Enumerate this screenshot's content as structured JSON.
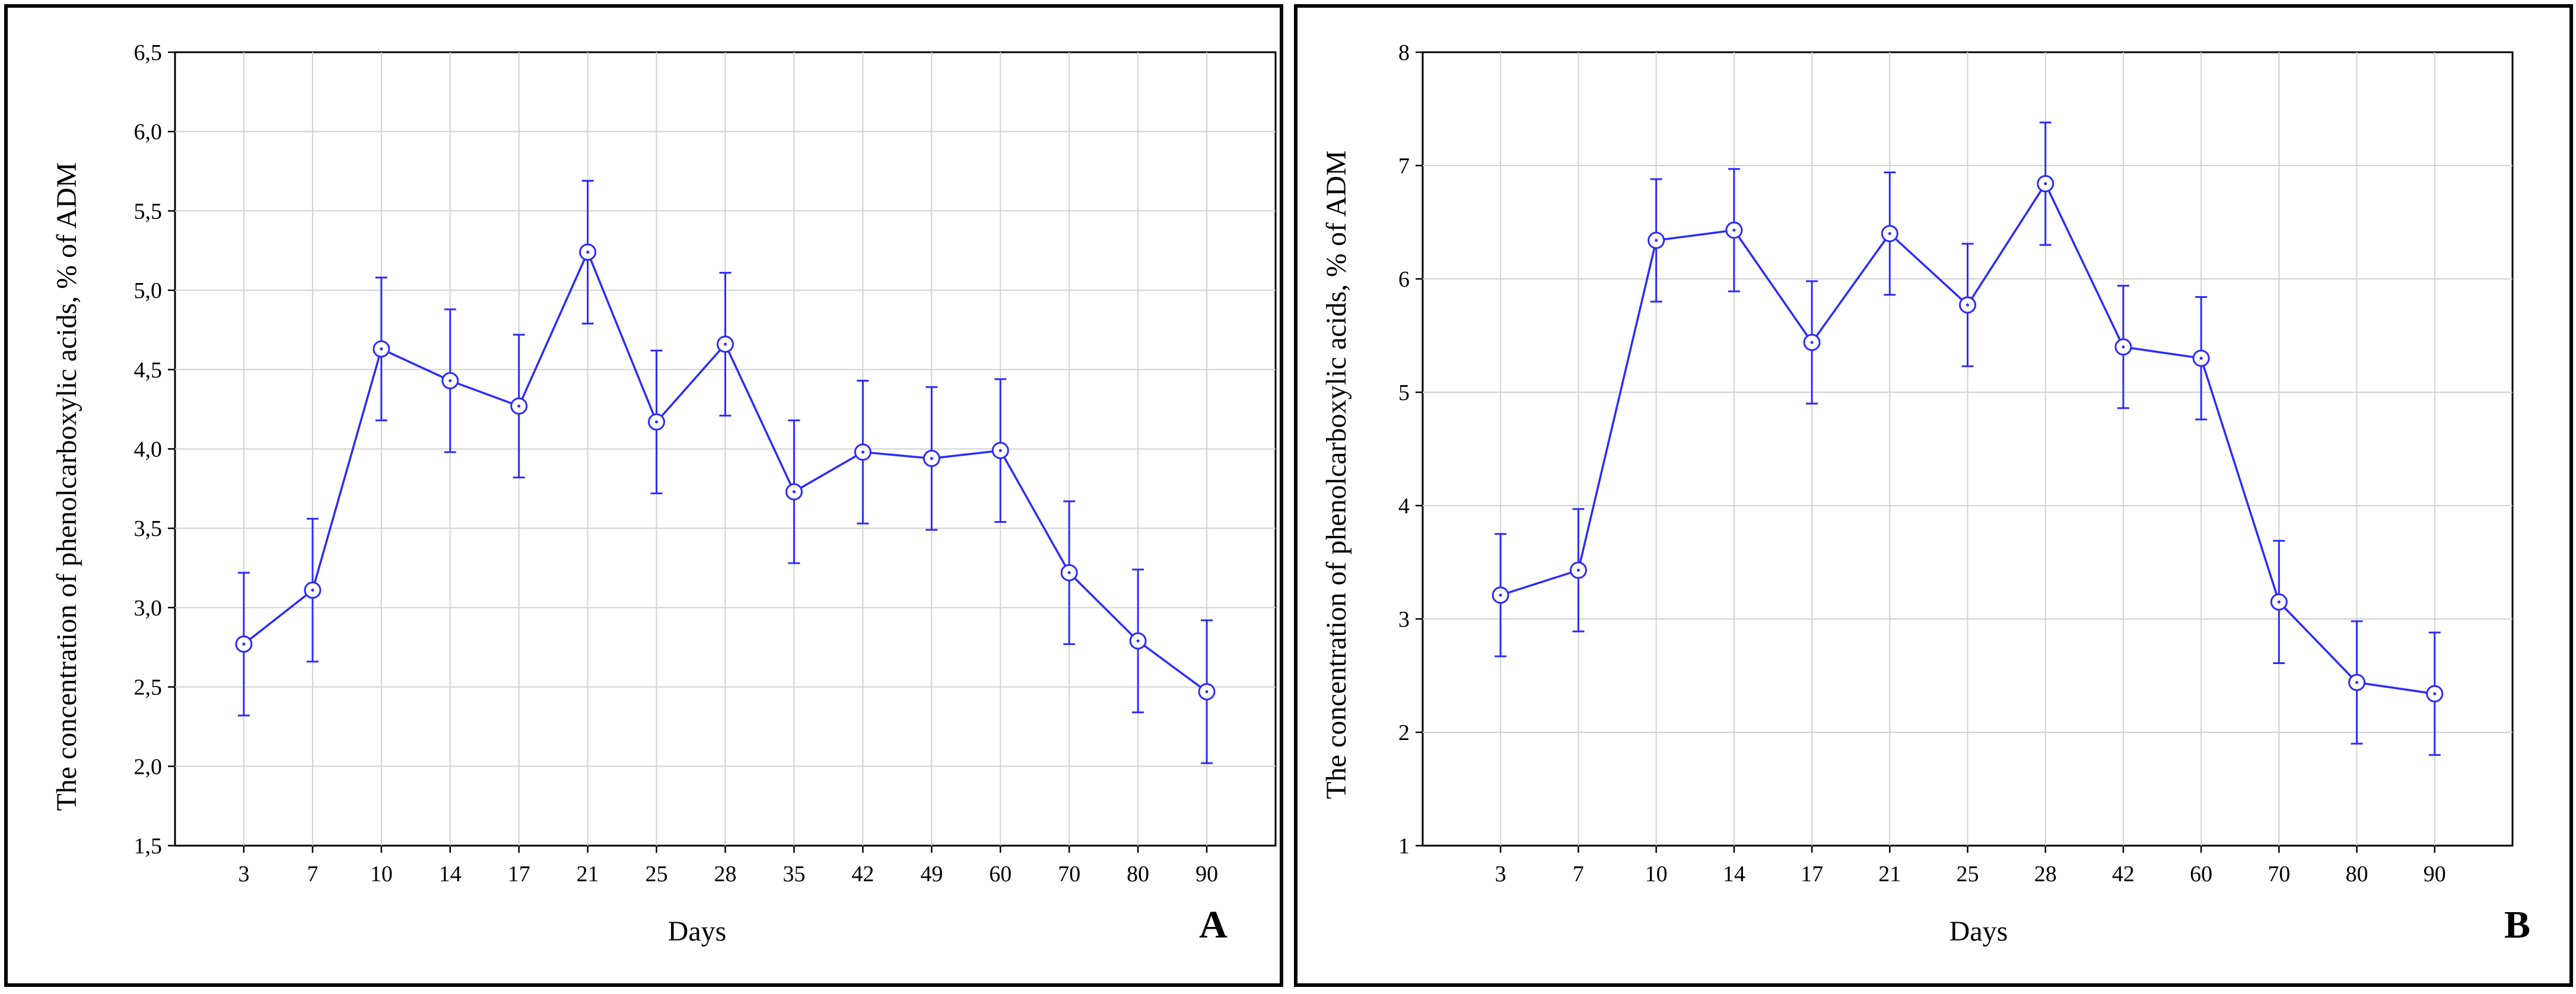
{
  "chart_data": [
    {
      "type": "line",
      "panel_label": "A",
      "xlabel": "Days",
      "ylabel": "The concentration of phenolcarboxylic acids, % of ADM",
      "ylim": [
        1.5,
        6.5
      ],
      "yticks": [
        "1,5",
        "2,0",
        "2,5",
        "3,0",
        "3,5",
        "4,0",
        "4,5",
        "5,0",
        "5,5",
        "6,0",
        "6,5"
      ],
      "categories": [
        "3",
        "7",
        "10",
        "14",
        "17",
        "21",
        "25",
        "28",
        "35",
        "42",
        "49",
        "60",
        "70",
        "80",
        "90"
      ],
      "grid": true,
      "color": "#2b2bff",
      "series": [
        {
          "values": [
            2.77,
            3.11,
            4.63,
            4.43,
            4.27,
            5.24,
            4.17,
            4.66,
            3.73,
            3.98,
            3.94,
            3.99,
            3.22,
            2.79,
            2.47
          ],
          "error_upper": [
            3.22,
            3.56,
            5.08,
            4.88,
            4.72,
            5.69,
            4.62,
            5.11,
            4.18,
            4.43,
            4.39,
            4.44,
            3.67,
            3.24,
            2.92
          ],
          "error_lower": [
            2.32,
            2.66,
            4.18,
            3.98,
            3.82,
            4.79,
            3.72,
            4.21,
            3.28,
            3.53,
            3.49,
            3.54,
            2.77,
            2.34,
            2.02
          ]
        }
      ]
    },
    {
      "type": "line",
      "panel_label": "B",
      "xlabel": "Days",
      "ylabel": "The concentration of phenolcarboxylic acids, % of ADM",
      "ylim": [
        1,
        8
      ],
      "yticks": [
        "1",
        "2",
        "3",
        "4",
        "5",
        "6",
        "7",
        "8"
      ],
      "categories": [
        "3",
        "7",
        "10",
        "14",
        "17",
        "21",
        "25",
        "28",
        "42",
        "60",
        "70",
        "80",
        "90"
      ],
      "grid": true,
      "color": "#2b2bff",
      "series": [
        {
          "values": [
            3.21,
            3.43,
            6.34,
            6.43,
            5.44,
            6.4,
            5.77,
            6.84,
            5.4,
            5.3,
            3.15,
            2.44,
            2.34
          ],
          "error_upper": [
            3.75,
            3.97,
            6.88,
            6.97,
            5.98,
            6.94,
            6.31,
            7.38,
            5.94,
            5.84,
            3.69,
            2.98,
            2.88
          ],
          "error_lower": [
            2.67,
            2.89,
            5.8,
            5.89,
            4.9,
            5.86,
            5.23,
            6.3,
            4.86,
            4.76,
            2.61,
            1.9,
            1.8
          ]
        }
      ]
    }
  ]
}
